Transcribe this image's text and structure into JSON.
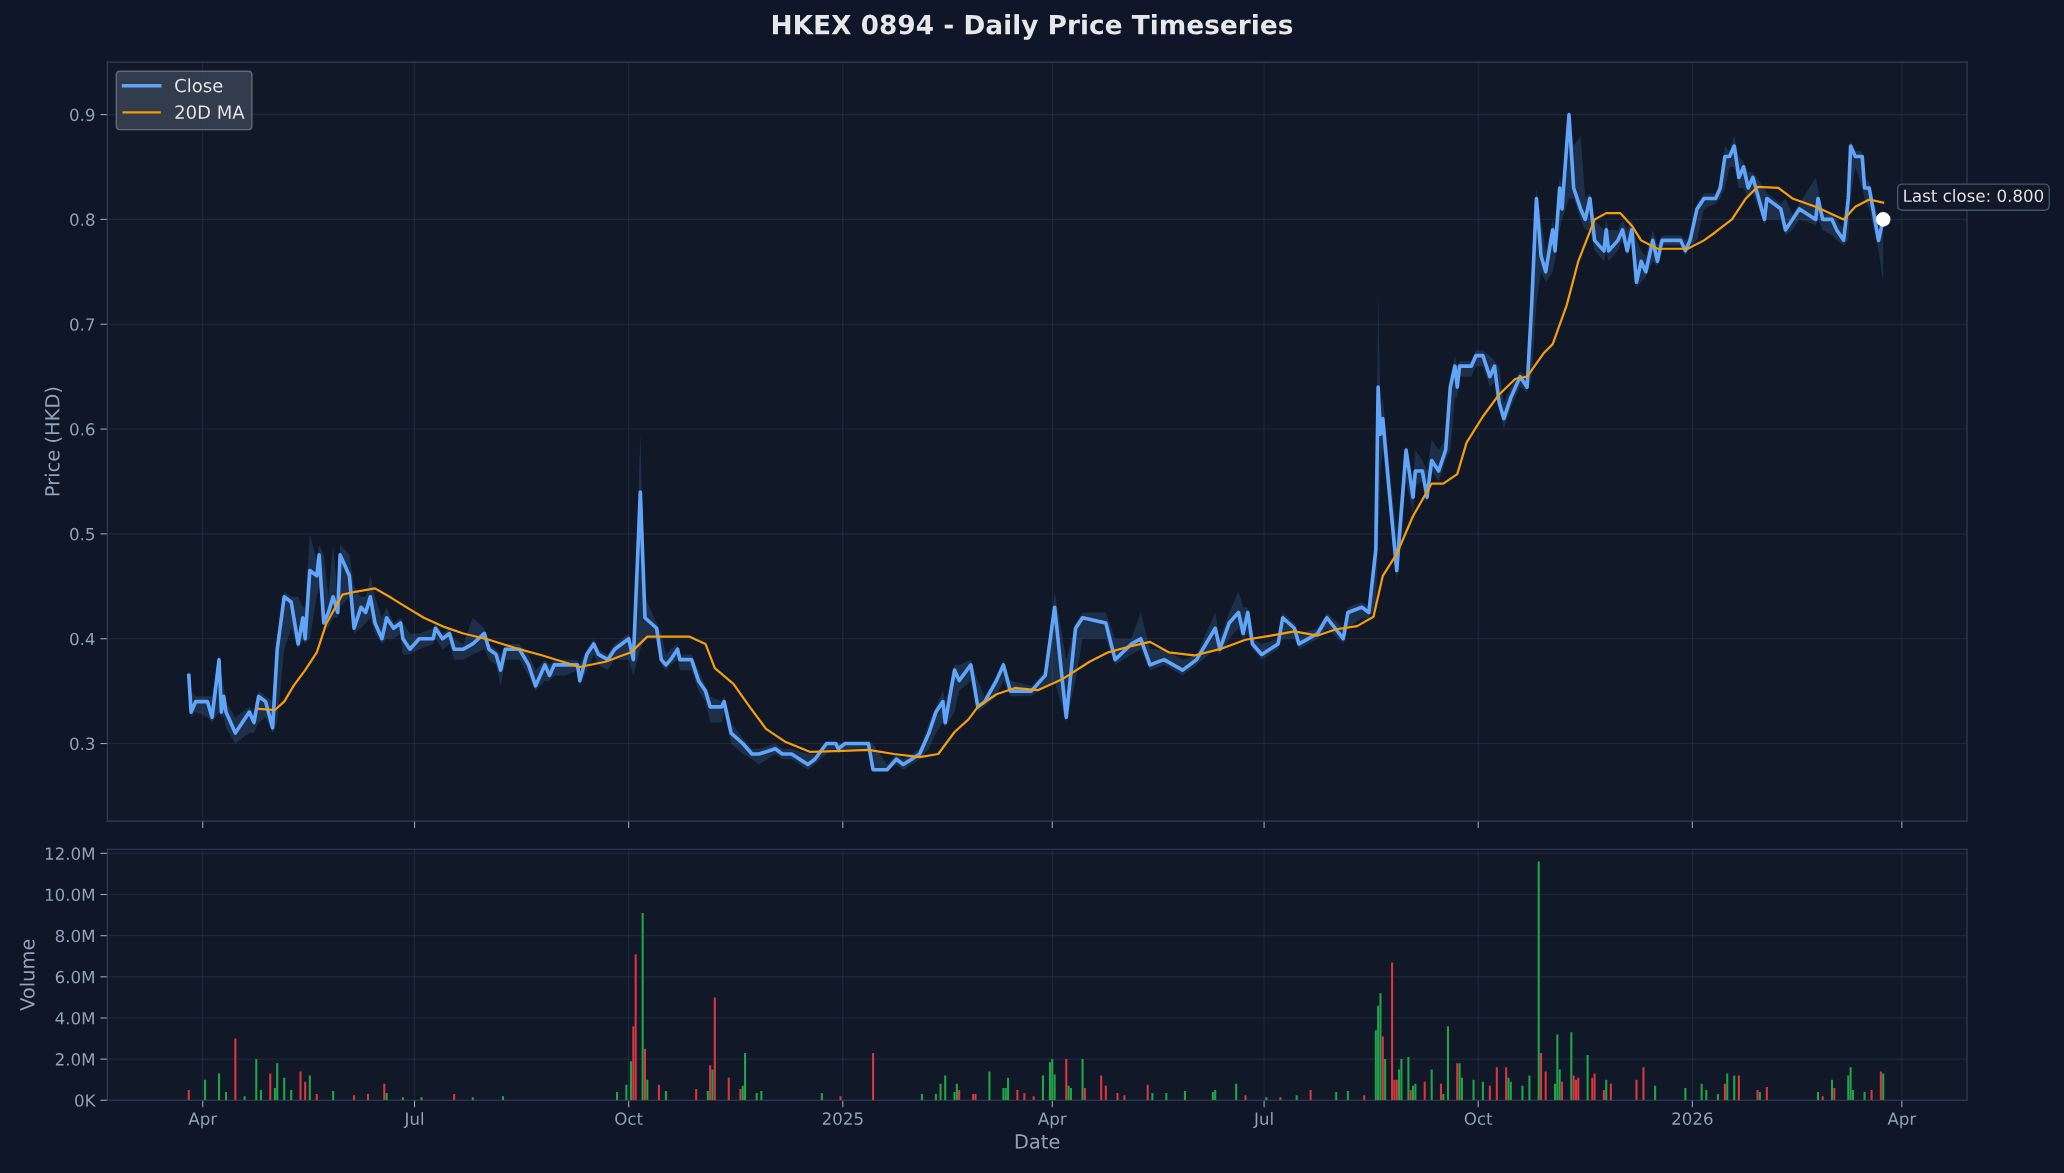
{
  "chart_data": [
    {
      "type": "line",
      "title": "HKEX 0894 - Daily Price Timeseries",
      "ylabel": "Price (HKD)",
      "xlim": [
        "2024-02-20",
        "2026-04-29"
      ],
      "xticks": [
        {
          "value": "2024-04-01",
          "label": null
        },
        {
          "value": "2024-07-01",
          "label": null
        },
        {
          "value": "2024-10-01",
          "label": null
        },
        {
          "value": "2025-01-01",
          "label": null
        },
        {
          "value": "2025-04-01",
          "label": null
        },
        {
          "value": "2025-07-01",
          "label": null
        },
        {
          "value": "2025-10-01",
          "label": null
        },
        {
          "value": "2026-01-01",
          "label": null
        },
        {
          "value": "2026-04-01",
          "label": null
        }
      ],
      "ylim": [
        0.226,
        0.95
      ],
      "yticks": [
        0.3,
        0.4,
        0.5,
        0.6,
        0.7,
        0.8,
        0.9
      ],
      "tick_labels": "y",
      "grid": true,
      "legend": "top left",
      "marker": "none",
      "line_style": "solid",
      "series": [
        {
          "name": "Close",
          "color": "#60a5fa",
          "x": [
            "2024-03-26",
            "2024-03-27",
            "2024-03-29",
            "2024-04-03",
            "2024-04-05",
            "2024-04-08",
            "2024-04-09",
            "2024-04-10",
            "2024-04-11",
            "2024-04-15",
            "2024-04-21",
            "2024-04-23",
            "2024-04-25",
            "2024-04-28",
            "2024-05-01",
            "2024-05-03",
            "2024-05-06",
            "2024-05-09",
            "2024-05-12",
            "2024-05-14",
            "2024-05-15",
            "2024-05-17",
            "2024-05-20",
            "2024-05-21",
            "2024-05-23",
            "2024-05-25",
            "2024-05-27",
            "2024-05-29",
            "2024-05-30",
            "2024-06-03",
            "2024-06-05",
            "2024-06-08",
            "2024-06-10",
            "2024-06-12",
            "2024-06-14",
            "2024-06-17",
            "2024-06-19",
            "2024-06-22",
            "2024-06-25",
            "2024-06-26",
            "2024-06-29",
            "2024-07-03",
            "2024-07-09",
            "2024-07-10",
            "2024-07-13",
            "2024-07-16",
            "2024-07-18",
            "2024-07-22",
            "2024-07-26",
            "2024-07-31",
            "2024-08-02",
            "2024-08-05",
            "2024-08-07",
            "2024-08-09",
            "2024-08-15",
            "2024-08-19",
            "2024-08-22",
            "2024-08-26",
            "2024-08-28",
            "2024-08-30",
            "2024-09-04",
            "2024-09-09",
            "2024-09-10",
            "2024-09-13",
            "2024-09-16",
            "2024-09-18",
            "2024-09-22",
            "2024-09-25",
            "2024-10-01",
            "2024-10-03",
            "2024-10-06",
            "2024-10-08",
            "2024-10-13",
            "2024-10-15",
            "2024-10-17",
            "2024-10-19",
            "2024-10-22",
            "2024-10-23",
            "2024-10-28",
            "2024-10-31",
            "2024-11-03",
            "2024-11-05",
            "2024-11-10",
            "2024-11-11",
            "2024-11-14",
            "2024-11-19",
            "2024-11-23",
            "2024-11-26",
            "2024-12-03",
            "2024-12-06",
            "2024-12-10",
            "2024-12-17",
            "2024-12-20",
            "2024-12-25",
            "2024-12-29",
            "2024-12-30",
            "2025-01-02",
            "2025-01-12",
            "2025-01-14",
            "2025-01-20",
            "2025-01-24",
            "2025-01-27",
            "2025-02-03",
            "2025-02-07",
            "2025-02-10",
            "2025-02-13",
            "2025-02-14",
            "2025-02-18",
            "2025-02-20",
            "2025-02-25",
            "2025-02-28",
            "2025-03-03",
            "2025-03-08",
            "2025-03-11",
            "2025-03-14",
            "2025-03-23",
            "2025-03-29",
            "2025-04-02",
            "2025-04-07",
            "2025-04-11",
            "2025-04-14",
            "2025-04-24",
            "2025-04-28",
            "2025-05-05",
            "2025-05-09",
            "2025-05-13",
            "2025-05-19",
            "2025-05-27",
            "2025-06-02",
            "2025-06-10",
            "2025-06-12",
            "2025-06-16",
            "2025-06-20",
            "2025-06-22",
            "2025-06-24",
            "2025-06-26",
            "2025-06-30",
            "2025-07-07",
            "2025-07-09",
            "2025-07-14",
            "2025-07-16",
            "2025-07-24",
            "2025-07-28",
            "2025-08-04",
            "2025-08-06",
            "2025-08-12",
            "2025-08-15",
            "2025-08-18",
            "2025-08-19",
            "2025-08-20",
            "2025-08-21",
            "2025-08-24",
            "2025-08-27",
            "2025-08-31",
            "2025-09-03",
            "2025-09-04",
            "2025-09-07",
            "2025-09-09",
            "2025-09-11",
            "2025-09-14",
            "2025-09-17",
            "2025-09-19",
            "2025-09-21",
            "2025-09-22",
            "2025-09-23",
            "2025-09-28",
            "2025-09-30",
            "2025-10-03",
            "2025-10-06",
            "2025-10-08",
            "2025-10-10",
            "2025-10-12",
            "2025-10-15",
            "2025-10-19",
            "2025-10-22",
            "2025-10-24",
            "2025-10-26",
            "2025-10-28",
            "2025-10-30",
            "2025-11-02",
            "2025-11-03",
            "2025-11-05",
            "2025-11-06",
            "2025-11-09",
            "2025-11-11",
            "2025-11-14",
            "2025-11-16",
            "2025-11-18",
            "2025-11-20",
            "2025-11-24",
            "2025-11-25",
            "2025-11-26",
            "2025-11-30",
            "2025-12-02",
            "2025-12-04",
            "2025-12-06",
            "2025-12-08",
            "2025-12-10",
            "2025-12-12",
            "2025-12-15",
            "2025-12-17",
            "2025-12-19",
            "2025-12-27",
            "2025-12-29",
            "2025-12-31",
            "2026-01-03",
            "2026-01-06",
            "2026-01-11",
            "2026-01-13",
            "2026-01-15",
            "2026-01-17",
            "2026-01-19",
            "2026-01-21",
            "2026-01-23",
            "2026-01-25",
            "2026-01-27",
            "2026-02-01",
            "2026-02-02",
            "2026-02-08",
            "2026-02-10",
            "2026-02-13",
            "2026-02-16",
            "2026-02-23",
            "2026-02-24",
            "2026-02-26",
            "2026-03-02",
            "2026-03-04",
            "2026-03-07",
            "2026-03-09",
            "2026-03-10",
            "2026-03-12",
            "2026-03-15",
            "2026-03-16",
            "2026-03-18",
            "2026-03-22",
            "2026-03-24"
          ],
          "values": [
            0.365,
            0.33,
            0.34,
            0.34,
            0.325,
            0.38,
            0.33,
            0.345,
            0.33,
            0.31,
            0.33,
            0.32,
            0.345,
            0.34,
            0.315,
            0.39,
            0.44,
            0.435,
            0.395,
            0.42,
            0.4,
            0.465,
            0.46,
            0.48,
            0.415,
            0.425,
            0.44,
            0.425,
            0.48,
            0.46,
            0.41,
            0.43,
            0.425,
            0.44,
            0.415,
            0.4,
            0.42,
            0.41,
            0.415,
            0.4,
            0.39,
            0.4,
            0.4,
            0.41,
            0.4,
            0.405,
            0.39,
            0.39,
            0.395,
            0.405,
            0.39,
            0.385,
            0.37,
            0.39,
            0.39,
            0.375,
            0.355,
            0.375,
            0.365,
            0.375,
            0.375,
            0.375,
            0.36,
            0.385,
            0.395,
            0.385,
            0.38,
            0.39,
            0.4,
            0.38,
            0.54,
            0.42,
            0.41,
            0.38,
            0.375,
            0.38,
            0.39,
            0.38,
            0.38,
            0.36,
            0.35,
            0.335,
            0.335,
            0.34,
            0.31,
            0.3,
            0.29,
            0.29,
            0.295,
            0.29,
            0.29,
            0.28,
            0.285,
            0.3,
            0.3,
            0.295,
            0.3,
            0.3,
            0.275,
            0.275,
            0.285,
            0.28,
            0.29,
            0.31,
            0.33,
            0.34,
            0.32,
            0.37,
            0.36,
            0.375,
            0.335,
            0.34,
            0.36,
            0.375,
            0.35,
            0.35,
            0.365,
            0.43,
            0.325,
            0.41,
            0.42,
            0.415,
            0.38,
            0.395,
            0.4,
            0.375,
            0.38,
            0.37,
            0.38,
            0.41,
            0.39,
            0.415,
            0.425,
            0.405,
            0.425,
            0.395,
            0.385,
            0.395,
            0.42,
            0.41,
            0.395,
            0.405,
            0.42,
            0.4,
            0.425,
            0.43,
            0.425,
            0.485,
            0.64,
            0.595,
            0.61,
            0.535,
            0.465,
            0.58,
            0.535,
            0.56,
            0.56,
            0.535,
            0.57,
            0.56,
            0.58,
            0.64,
            0.66,
            0.64,
            0.66,
            0.66,
            0.67,
            0.67,
            0.65,
            0.66,
            0.625,
            0.61,
            0.63,
            0.65,
            0.64,
            0.72,
            0.82,
            0.765,
            0.75,
            0.79,
            0.77,
            0.83,
            0.81,
            0.9,
            0.83,
            0.81,
            0.8,
            0.82,
            0.78,
            0.77,
            0.79,
            0.77,
            0.78,
            0.79,
            0.77,
            0.79,
            0.74,
            0.76,
            0.75,
            0.78,
            0.76,
            0.78,
            0.78,
            0.77,
            0.78,
            0.81,
            0.82,
            0.82,
            0.83,
            0.86,
            0.86,
            0.87,
            0.84,
            0.85,
            0.83,
            0.84,
            0.8,
            0.82,
            0.81,
            0.79,
            0.8,
            0.81,
            0.8,
            0.82,
            0.8,
            0.8,
            0.79,
            0.78,
            0.82,
            0.87,
            0.86,
            0.86,
            0.83,
            0.83,
            0.78,
            0.8
          ],
          "lower": [
            0.335,
            0.325,
            0.33,
            0.325,
            0.32,
            0.33,
            0.325,
            0.325,
            0.315,
            0.3,
            0.31,
            0.31,
            0.32,
            0.325,
            0.31,
            0.32,
            0.39,
            0.41,
            0.39,
            0.4,
            0.395,
            0.4,
            0.44,
            0.45,
            0.41,
            0.41,
            0.42,
            0.42,
            0.43,
            0.44,
            0.405,
            0.41,
            0.415,
            0.42,
            0.405,
            0.395,
            0.4,
            0.4,
            0.405,
            0.385,
            0.385,
            0.39,
            0.395,
            0.4,
            0.39,
            0.395,
            0.38,
            0.38,
            0.385,
            0.39,
            0.38,
            0.375,
            0.355,
            0.38,
            0.38,
            0.365,
            0.35,
            0.36,
            0.36,
            0.365,
            0.365,
            0.37,
            0.355,
            0.37,
            0.385,
            0.375,
            0.37,
            0.38,
            0.38,
            0.365,
            0.39,
            0.4,
            0.4,
            0.375,
            0.37,
            0.375,
            0.38,
            0.37,
            0.37,
            0.35,
            0.34,
            0.32,
            0.32,
            0.33,
            0.3,
            0.29,
            0.285,
            0.28,
            0.29,
            0.285,
            0.285,
            0.275,
            0.28,
            0.29,
            0.295,
            0.29,
            0.295,
            0.295,
            0.275,
            0.275,
            0.28,
            0.275,
            0.285,
            0.295,
            0.31,
            0.32,
            0.315,
            0.33,
            0.35,
            0.36,
            0.33,
            0.335,
            0.345,
            0.36,
            0.345,
            0.345,
            0.355,
            0.36,
            0.32,
            0.36,
            0.4,
            0.4,
            0.375,
            0.385,
            0.39,
            0.37,
            0.375,
            0.365,
            0.375,
            0.39,
            0.385,
            0.4,
            0.41,
            0.4,
            0.405,
            0.39,
            0.38,
            0.39,
            0.4,
            0.4,
            0.39,
            0.4,
            0.41,
            0.395,
            0.41,
            0.42,
            0.42,
            0.43,
            0.49,
            0.56,
            0.58,
            0.52,
            0.455,
            0.55,
            0.52,
            0.545,
            0.55,
            0.53,
            0.56,
            0.55,
            0.57,
            0.58,
            0.63,
            0.63,
            0.65,
            0.65,
            0.66,
            0.66,
            0.64,
            0.645,
            0.62,
            0.6,
            0.62,
            0.64,
            0.635,
            0.65,
            0.72,
            0.75,
            0.74,
            0.75,
            0.76,
            0.79,
            0.8,
            0.82,
            0.82,
            0.8,
            0.79,
            0.79,
            0.77,
            0.76,
            0.77,
            0.76,
            0.77,
            0.78,
            0.765,
            0.78,
            0.735,
            0.74,
            0.745,
            0.76,
            0.755,
            0.775,
            0.775,
            0.765,
            0.775,
            0.78,
            0.81,
            0.815,
            0.82,
            0.83,
            0.85,
            0.85,
            0.83,
            0.83,
            0.82,
            0.825,
            0.795,
            0.8,
            0.8,
            0.785,
            0.79,
            0.8,
            0.795,
            0.8,
            0.79,
            0.785,
            0.78,
            0.775,
            0.78,
            0.82,
            0.85,
            0.83,
            0.82,
            0.81,
            0.77,
            0.74
          ],
          "upper": [
            0.37,
            0.35,
            0.345,
            0.345,
            0.345,
            0.385,
            0.365,
            0.355,
            0.34,
            0.325,
            0.335,
            0.33,
            0.35,
            0.345,
            0.34,
            0.4,
            0.445,
            0.44,
            0.44,
            0.43,
            0.43,
            0.5,
            0.475,
            0.49,
            0.48,
            0.44,
            0.49,
            0.44,
            0.49,
            0.48,
            0.45,
            0.44,
            0.44,
            0.46,
            0.44,
            0.42,
            0.43,
            0.415,
            0.42,
            0.415,
            0.405,
            0.405,
            0.41,
            0.415,
            0.405,
            0.41,
            0.4,
            0.395,
            0.42,
            0.41,
            0.395,
            0.39,
            0.385,
            0.395,
            0.395,
            0.385,
            0.37,
            0.38,
            0.375,
            0.38,
            0.38,
            0.38,
            0.375,
            0.39,
            0.4,
            0.39,
            0.385,
            0.395,
            0.405,
            0.39,
            0.595,
            0.44,
            0.415,
            0.405,
            0.385,
            0.39,
            0.395,
            0.385,
            0.385,
            0.37,
            0.355,
            0.345,
            0.34,
            0.345,
            0.32,
            0.305,
            0.295,
            0.295,
            0.3,
            0.295,
            0.295,
            0.29,
            0.29,
            0.3,
            0.3,
            0.3,
            0.3,
            0.3,
            0.3,
            0.28,
            0.29,
            0.285,
            0.295,
            0.32,
            0.335,
            0.35,
            0.34,
            0.375,
            0.375,
            0.38,
            0.36,
            0.345,
            0.365,
            0.38,
            0.36,
            0.355,
            0.37,
            0.445,
            0.38,
            0.415,
            0.425,
            0.425,
            0.4,
            0.4,
            0.425,
            0.39,
            0.39,
            0.38,
            0.385,
            0.425,
            0.4,
            0.425,
            0.445,
            0.43,
            0.43,
            0.4,
            0.395,
            0.4,
            0.425,
            0.415,
            0.405,
            0.41,
            0.425,
            0.41,
            0.43,
            0.435,
            0.43,
            0.5,
            0.73,
            0.62,
            0.63,
            0.56,
            0.5,
            0.585,
            0.55,
            0.58,
            0.57,
            0.56,
            0.59,
            0.58,
            0.59,
            0.65,
            0.67,
            0.66,
            0.665,
            0.665,
            0.675,
            0.675,
            0.67,
            0.665,
            0.66,
            0.625,
            0.64,
            0.655,
            0.65,
            0.73,
            0.83,
            0.8,
            0.77,
            0.8,
            0.79,
            0.84,
            0.83,
            0.905,
            0.87,
            0.88,
            0.82,
            0.825,
            0.8,
            0.79,
            0.8,
            0.79,
            0.79,
            0.8,
            0.79,
            0.8,
            0.78,
            0.77,
            0.765,
            0.79,
            0.775,
            0.785,
            0.785,
            0.78,
            0.785,
            0.815,
            0.825,
            0.825,
            0.835,
            0.87,
            0.865,
            0.88,
            0.86,
            0.855,
            0.845,
            0.845,
            0.83,
            0.825,
            0.815,
            0.82,
            0.805,
            0.815,
            0.84,
            0.83,
            0.805,
            0.805,
            0.8,
            0.79,
            0.825,
            0.875,
            0.865,
            0.865,
            0.84,
            0.835,
            0.8,
            0.81
          ]
        },
        {
          "name": "20D MA",
          "color": "#f59e0b",
          "x": [
            "2024-04-25",
            "2024-05-02",
            "2024-05-06",
            "2024-05-10",
            "2024-05-15",
            "2024-05-20",
            "2024-05-24",
            "2024-05-31",
            "2024-06-06",
            "2024-06-14",
            "2024-06-21",
            "2024-06-29",
            "2024-07-05",
            "2024-07-14",
            "2024-07-22",
            "2024-08-02",
            "2024-08-15",
            "2024-08-25",
            "2024-09-10",
            "2024-09-21",
            "2024-10-02",
            "2024-10-09",
            "2024-10-19",
            "2024-10-27",
            "2024-11-03",
            "2024-11-07",
            "2024-11-15",
            "2024-11-22",
            "2024-11-29",
            "2024-12-07",
            "2024-12-18",
            "2025-01-01",
            "2025-01-12",
            "2025-01-23",
            "2025-02-03",
            "2025-02-11",
            "2025-02-18",
            "2025-02-24",
            "2025-02-28",
            "2025-03-08",
            "2025-03-16",
            "2025-03-26",
            "2025-04-05",
            "2025-04-17",
            "2025-04-25",
            "2025-05-05",
            "2025-05-13",
            "2025-05-21",
            "2025-06-01",
            "2025-06-12",
            "2025-06-23",
            "2025-07-04",
            "2025-07-14",
            "2025-07-24",
            "2025-08-01",
            "2025-08-10",
            "2025-08-17",
            "2025-08-21",
            "2025-08-27",
            "2025-09-03",
            "2025-09-11",
            "2025-09-16",
            "2025-09-22",
            "2025-09-26",
            "2025-10-03",
            "2025-10-10",
            "2025-10-17",
            "2025-10-22",
            "2025-10-29",
            "2025-11-02",
            "2025-11-08",
            "2025-11-13",
            "2025-11-20",
            "2025-11-25",
            "2025-12-01",
            "2025-12-06",
            "2025-12-10",
            "2025-12-17",
            "2025-12-30",
            "2026-01-06",
            "2026-01-11",
            "2026-01-18",
            "2026-01-24",
            "2026-01-29",
            "2026-02-07",
            "2026-02-13",
            "2026-02-23",
            "2026-03-07",
            "2026-03-12",
            "2026-03-18",
            "2026-03-24"
          ],
          "values": [
            0.333,
            0.332,
            0.34,
            0.355,
            0.37,
            0.387,
            0.414,
            0.442,
            0.445,
            0.448,
            0.439,
            0.428,
            0.42,
            0.411,
            0.405,
            0.399,
            0.39,
            0.384,
            0.373,
            0.378,
            0.387,
            0.402,
            0.402,
            0.402,
            0.395,
            0.372,
            0.357,
            0.335,
            0.314,
            0.302,
            0.292,
            0.293,
            0.294,
            0.29,
            0.287,
            0.29,
            0.311,
            0.323,
            0.335,
            0.347,
            0.353,
            0.351,
            0.361,
            0.378,
            0.387,
            0.393,
            0.397,
            0.387,
            0.384,
            0.39,
            0.399,
            0.403,
            0.407,
            0.403,
            0.409,
            0.412,
            0.421,
            0.46,
            0.481,
            0.517,
            0.548,
            0.548,
            0.557,
            0.587,
            0.612,
            0.633,
            0.648,
            0.65,
            0.672,
            0.681,
            0.718,
            0.76,
            0.8,
            0.806,
            0.806,
            0.794,
            0.78,
            0.772,
            0.772,
            0.78,
            0.788,
            0.8,
            0.82,
            0.831,
            0.83,
            0.82,
            0.812,
            0.8,
            0.812,
            0.819,
            0.816
          ]
        }
      ],
      "annotations": [
        {
          "text": "Last close: 0.800",
          "x": "2026-03-24",
          "y": 0.8
        }
      ]
    },
    {
      "type": "bar",
      "xlabel": "Date",
      "ylabel": "Volume",
      "xlim": [
        "2024-02-20",
        "2026-04-29"
      ],
      "xticks": [
        {
          "value": "2024-04-01",
          "label": "Apr"
        },
        {
          "value": "2024-07-01",
          "label": "Jul"
        },
        {
          "value": "2024-10-01",
          "label": "Oct"
        },
        {
          "value": "2025-01-01",
          "label": "2025"
        },
        {
          "value": "2025-04-01",
          "label": "Apr"
        },
        {
          "value": "2025-07-01",
          "label": "Jul"
        },
        {
          "value": "2025-10-01",
          "label": "Oct"
        },
        {
          "value": "2026-01-01",
          "label": "2026"
        },
        {
          "value": "2026-04-01",
          "label": "Apr"
        }
      ],
      "ylim": [
        0,
        12200000
      ],
      "yticks": [
        {
          "value": 0,
          "label": "0K"
        },
        {
          "value": 2000000,
          "label": "2.0M"
        },
        {
          "value": 4000000,
          "label": "4.0M"
        },
        {
          "value": 6000000,
          "label": "6.0M"
        },
        {
          "value": 8000000,
          "label": "8.0M"
        },
        {
          "value": 10000000,
          "label": "10.0M"
        },
        {
          "value": 12000000,
          "label": "12.0M"
        }
      ],
      "grid": true,
      "series": [
        {
          "x": [
            "2024-03-26",
            "2024-04-02",
            "2024-04-08",
            "2024-04-11",
            "2024-04-15",
            "2024-04-19",
            "2024-04-24",
            "2024-04-26",
            "2024-04-30",
            "2024-05-02",
            "2024-05-03",
            "2024-05-06",
            "2024-05-09",
            "2024-05-13",
            "2024-05-15",
            "2024-05-17",
            "2024-05-20",
            "2024-05-27",
            "2024-06-05",
            "2024-06-11",
            "2024-06-18",
            "2024-06-19",
            "2024-06-26",
            "2024-07-04",
            "2024-07-18",
            "2024-07-26",
            "2024-08-08",
            "2024-09-26",
            "2024-09-30",
            "2024-10-02",
            "2024-10-03",
            "2024-10-04",
            "2024-10-07",
            "2024-10-08",
            "2024-10-09",
            "2024-10-14",
            "2024-10-17",
            "2024-10-30",
            "2024-11-04",
            "2024-11-05",
            "2024-11-06",
            "2024-11-07",
            "2024-11-13",
            "2024-11-18",
            "2024-11-19",
            "2024-11-20",
            "2024-11-25",
            "2024-11-27",
            "2024-12-23",
            "2024-12-31",
            "2025-01-14",
            "2025-02-04",
            "2025-02-10",
            "2025-02-12",
            "2025-02-14",
            "2025-02-18",
            "2025-02-19",
            "2025-02-20",
            "2025-02-26",
            "2025-02-27",
            "2025-03-05",
            "2025-03-11",
            "2025-03-12",
            "2025-03-13",
            "2025-03-17",
            "2025-03-20",
            "2025-03-24",
            "2025-03-28",
            "2025-03-31",
            "2025-04-01",
            "2025-04-02",
            "2025-04-07",
            "2025-04-08",
            "2025-04-09",
            "2025-04-14",
            "2025-04-15",
            "2025-04-22",
            "2025-04-24",
            "2025-04-29",
            "2025-05-02",
            "2025-05-12",
            "2025-05-14",
            "2025-05-20",
            "2025-05-28",
            "2025-06-09",
            "2025-06-10",
            "2025-06-19",
            "2025-06-23",
            "2025-07-02",
            "2025-07-08",
            "2025-07-15",
            "2025-07-21",
            "2025-08-01",
            "2025-08-06",
            "2025-08-13",
            "2025-08-18",
            "2025-08-19",
            "2025-08-20",
            "2025-08-21",
            "2025-08-22",
            "2025-08-25",
            "2025-08-26",
            "2025-08-27",
            "2025-08-28",
            "2025-08-29",
            "2025-09-01",
            "2025-09-02",
            "2025-09-03",
            "2025-09-04",
            "2025-09-08",
            "2025-09-11",
            "2025-09-15",
            "2025-09-16",
            "2025-09-18",
            "2025-09-22",
            "2025-09-23",
            "2025-09-24",
            "2025-09-29",
            "2025-10-03",
            "2025-10-06",
            "2025-10-09",
            "2025-10-13",
            "2025-10-14",
            "2025-10-15",
            "2025-10-20",
            "2025-10-23",
            "2025-10-27",
            "2025-10-28",
            "2025-10-30",
            "2025-11-03",
            "2025-11-04",
            "2025-11-05",
            "2025-11-06",
            "2025-11-10",
            "2025-11-11",
            "2025-11-12",
            "2025-11-13",
            "2025-11-17",
            "2025-11-19",
            "2025-11-20",
            "2025-11-24",
            "2025-11-25",
            "2025-11-27",
            "2025-12-08",
            "2025-12-11",
            "2025-12-16",
            "2025-12-29",
            "2026-01-05",
            "2026-01-07",
            "2026-01-12",
            "2026-01-15",
            "2026-01-16",
            "2026-01-19",
            "2026-01-21",
            "2026-01-29",
            "2026-01-30",
            "2026-02-02",
            "2026-02-24",
            "2026-02-26",
            "2026-03-02",
            "2026-03-03",
            "2026-03-09",
            "2026-03-10",
            "2026-03-11",
            "2026-03-16",
            "2026-03-19",
            "2026-03-23",
            "2026-03-24"
          ],
          "values": [
            500000,
            1000000,
            1300000,
            400000,
            3000000,
            200000,
            2000000,
            500000,
            1300000,
            600000,
            1800000,
            1100000,
            500000,
            1400000,
            900000,
            1200000,
            300000,
            450000,
            250000,
            300000,
            800000,
            350000,
            150000,
            150000,
            300000,
            150000,
            200000,
            400000,
            750000,
            1900000,
            3600000,
            7100000,
            9100000,
            2500000,
            1000000,
            750000,
            450000,
            550000,
            450000,
            1700000,
            1500000,
            5000000,
            1100000,
            550000,
            700000,
            2300000,
            350000,
            450000,
            350000,
            200000,
            2300000,
            300000,
            300000,
            800000,
            1200000,
            400000,
            800000,
            500000,
            300000,
            300000,
            1400000,
            600000,
            600000,
            1100000,
            500000,
            350000,
            200000,
            1200000,
            1850000,
            2000000,
            1250000,
            2000000,
            700000,
            600000,
            2000000,
            600000,
            1200000,
            700000,
            350000,
            250000,
            750000,
            350000,
            350000,
            450000,
            400000,
            500000,
            800000,
            250000,
            150000,
            150000,
            250000,
            500000,
            400000,
            450000,
            250000,
            3400000,
            4600000,
            5200000,
            3100000,
            2000000,
            6700000,
            1000000,
            1000000,
            1500000,
            2000000,
            2100000,
            500000,
            700000,
            800000,
            900000,
            1500000,
            800000,
            300000,
            3600000,
            1800000,
            1800000,
            1100000,
            1000000,
            900000,
            700000,
            1600000,
            1600000,
            1100000,
            900000,
            700000,
            1200000,
            11600000,
            2300000,
            1400000,
            800000,
            3200000,
            1500000,
            900000,
            3300000,
            1200000,
            1000000,
            1100000,
            2200000,
            1100000,
            1300000,
            500000,
            1000000,
            800000,
            1000000,
            1600000,
            700000,
            600000,
            800000,
            500000,
            300000,
            800000,
            1300000,
            1200000,
            1200000,
            500000,
            400000,
            650000,
            400000,
            200000,
            1000000,
            600000,
            1200000,
            1600000,
            500000,
            400000,
            500000,
            1400000,
            1300000
          ],
          "colors": [
            "#d7373f",
            "#22a34a",
            "#22a34a",
            "#22a34a",
            "#d7373f",
            "#22a34a",
            "#22a34a",
            "#22a34a",
            "#d7373f",
            "#22a34a",
            "#22a34a",
            "#22a34a",
            "#22a34a",
            "#d7373f",
            "#d7373f",
            "#22a34a",
            "#d7373f",
            "#22a34a",
            "#d7373f",
            "#d7373f",
            "#d7373f",
            "#22a34a",
            "#22a34a",
            "#22a34a",
            "#d7373f",
            "#22a34a",
            "#22a34a",
            "#22a34a",
            "#22a34a",
            "#22a34a",
            "#d7373f",
            "#d7373f",
            "#22a34a",
            "#d7373f",
            "#22a34a",
            "#d7373f",
            "#22a34a",
            "#d7373f",
            "#22a34a",
            "#d7373f",
            "#22a34a",
            "#d7373f",
            "#d7373f",
            "#d7373f",
            "#22a34a",
            "#22a34a",
            "#22a34a",
            "#22a34a",
            "#22a34a",
            "#d7373f",
            "#d7373f",
            "#22a34a",
            "#22a34a",
            "#22a34a",
            "#22a34a",
            "#22a34a",
            "#22a34a",
            "#d7373f",
            "#d7373f",
            "#d7373f",
            "#22a34a",
            "#22a34a",
            "#22a34a",
            "#22a34a",
            "#d7373f",
            "#d7373f",
            "#d7373f",
            "#22a34a",
            "#22a34a",
            "#22a34a",
            "#22a34a",
            "#d7373f",
            "#22a34a",
            "#22a34a",
            "#22a34a",
            "#d7373f",
            "#d7373f",
            "#d7373f",
            "#d7373f",
            "#d7373f",
            "#d7373f",
            "#22a34a",
            "#22a34a",
            "#22a34a",
            "#22a34a",
            "#22a34a",
            "#22a34a",
            "#d7373f",
            "#22a34a",
            "#d7373f",
            "#22a34a",
            "#d7373f",
            "#22a34a",
            "#22a34a",
            "#d7373f",
            "#22a34a",
            "#22a34a",
            "#22a34a",
            "#d7373f",
            "#22a34a",
            "#d7373f",
            "#d7373f",
            "#d7373f",
            "#22a34a",
            "#22a34a",
            "#22a34a",
            "#d7373f",
            "#22a34a",
            "#22a34a",
            "#d7373f",
            "#22a34a",
            "#d7373f",
            "#22a34a",
            "#22a34a",
            "#d7373f",
            "#22a34a",
            "#22a34a",
            "#22a34a",
            "#22a34a",
            "#d7373f",
            "#d7373f",
            "#d7373f",
            "#22a34a",
            "#22a34a",
            "#22a34a",
            "#22a34a",
            "#22a34a",
            "#d7373f",
            "#d7373f",
            "#22a34a",
            "#22a34a",
            "#22a34a",
            "#d7373f",
            "#22a34a",
            "#d7373f",
            "#d7373f",
            "#d7373f",
            "#22a34a",
            "#d7373f",
            "#d7373f",
            "#d7373f",
            "#22a34a",
            "#d7373f",
            "#d7373f",
            "#d7373f",
            "#22a34a",
            "#22a34a",
            "#22a34a",
            "#22a34a",
            "#22a34a",
            "#d7373f",
            "#22a34a",
            "#22a34a",
            "#d7373f",
            "#d7373f",
            "#22a34a",
            "#d7373f",
            "#22a34a",
            "#d7373f",
            "#22a34a",
            "#d7373f",
            "#22a34a",
            "#22a34a",
            "#22a34a",
            "#22a34a",
            "#d7373f",
            "#d7373f",
            "#22a34a"
          ]
        }
      ]
    }
  ]
}
